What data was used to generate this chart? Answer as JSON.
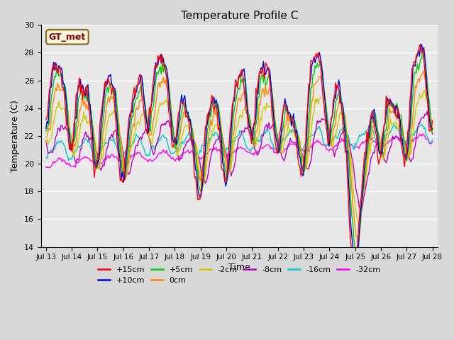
{
  "title": "Temperature Profile C",
  "xlabel": "Time",
  "ylabel": "Temperature (C)",
  "ylim": [
    14,
    30
  ],
  "yticks": [
    14,
    16,
    18,
    20,
    22,
    24,
    26,
    28,
    30
  ],
  "series_labels": [
    "+15cm",
    "+10cm",
    "+5cm",
    "0cm",
    "-2cm",
    "-8cm",
    "-16cm",
    "-32cm"
  ],
  "series_colors": [
    "#ff0000",
    "#0000dd",
    "#00cc00",
    "#ff8800",
    "#cccc00",
    "#bb00bb",
    "#00cccc",
    "#ff00ff"
  ],
  "legend_label": "GT_met",
  "n_days": 15,
  "n_points": 360,
  "background_color": "#e8e8e8",
  "grid_color": "#ffffff",
  "fig_bg": "#d8d8d8"
}
